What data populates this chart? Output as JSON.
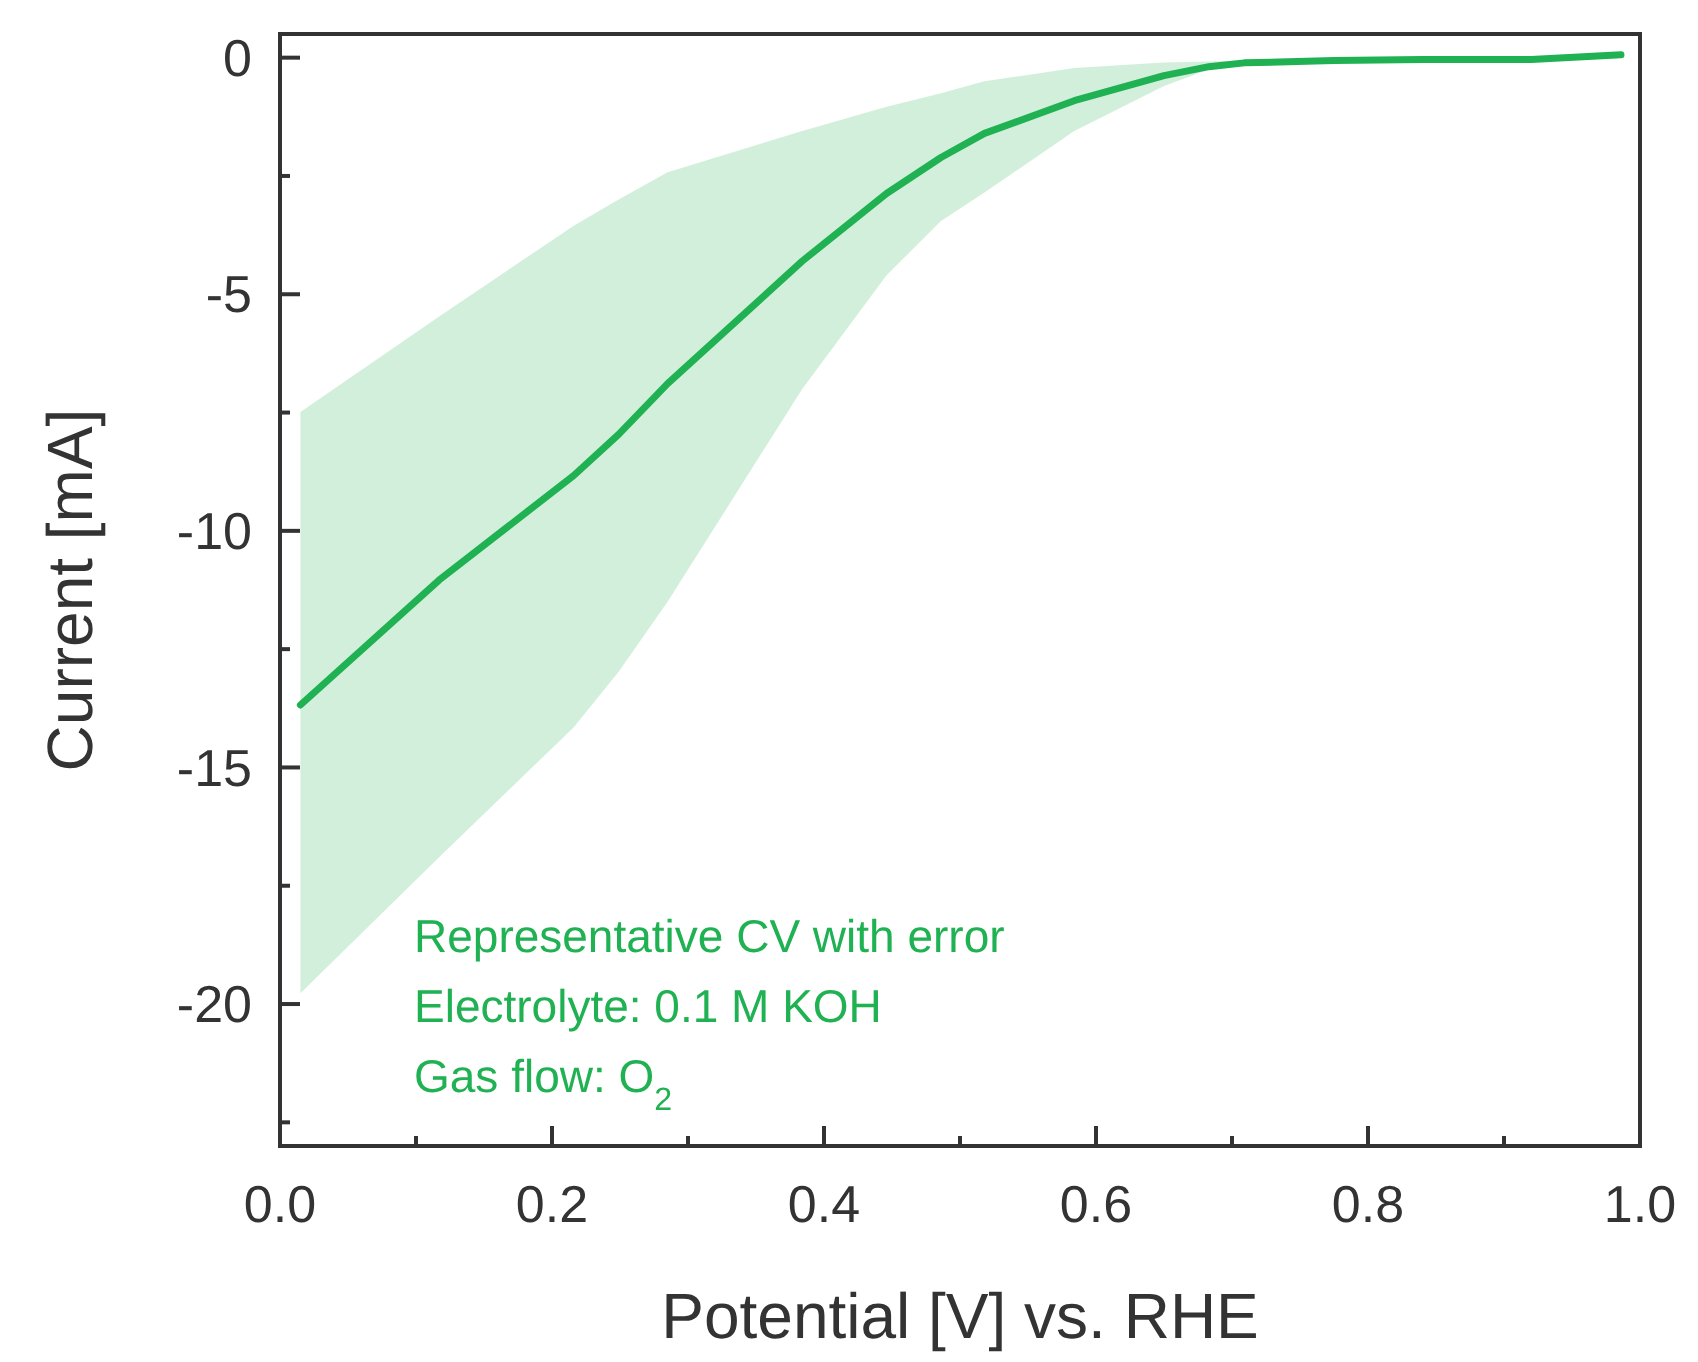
{
  "chart_data": {
    "type": "line",
    "xlabel": "Potential [V] vs. RHE",
    "ylabel": "Current [mA]",
    "x": [
      0.015,
      0.117,
      0.216,
      0.249,
      0.285,
      0.384,
      0.446,
      0.486,
      0.518,
      0.584,
      0.65,
      0.683,
      0.709,
      0.775,
      0.84,
      0.92,
      0.986
    ],
    "series": [
      {
        "color": "#1fb152",
        "values": [
          -13.68,
          -11.04,
          -8.83,
          -7.96,
          -6.89,
          -4.3,
          -2.87,
          -2.11,
          -1.6,
          -0.91,
          -0.38,
          -0.19,
          -0.11,
          -0.06,
          -0.04,
          -0.04,
          0.06
        ],
        "lower": [
          -19.77,
          -16.9,
          -14.15,
          -12.98,
          -11.5,
          -7.0,
          -4.6,
          -3.45,
          -2.85,
          -1.55,
          -0.6,
          -0.25,
          -0.15,
          -0.09,
          -0.06,
          -0.06,
          0.04
        ],
        "upper": [
          -7.49,
          -5.47,
          -3.55,
          -3.0,
          -2.42,
          -1.55,
          -1.04,
          -0.75,
          -0.5,
          -0.22,
          -0.1,
          -0.08,
          -0.06,
          -0.03,
          -0.02,
          -0.02,
          0.08
        ]
      }
    ],
    "xlim": [
      0,
      1
    ],
    "ylim": [
      -23,
      0.5
    ],
    "xticks": [
      {
        "value": 0,
        "label": "0.0"
      },
      {
        "value": 0.1,
        "label": null
      },
      {
        "value": 0.2,
        "label": "0.2"
      },
      {
        "value": 0.3,
        "label": null
      },
      {
        "value": 0.4,
        "label": "0.4"
      },
      {
        "value": 0.5,
        "label": null
      },
      {
        "value": 0.6,
        "label": "0.6"
      },
      {
        "value": 0.7,
        "label": null
      },
      {
        "value": 0.8,
        "label": "0.8"
      },
      {
        "value": 0.9,
        "label": null
      },
      {
        "value": 1,
        "label": "1.0"
      }
    ],
    "yticks": [
      0,
      {
        "value": -2.5,
        "label": null
      },
      -5,
      {
        "value": -7.5,
        "label": null
      },
      -10,
      {
        "value": -12.5,
        "label": null
      },
      -15,
      {
        "value": -17.5,
        "label": null
      },
      -20,
      {
        "value": -22.5,
        "label": null
      }
    ],
    "annotations": [
      "Representative CV with error",
      "Electrolyte: 0.1 M KOH",
      "Gas flow: O$_{2}$"
    ],
    "grid": false,
    "marker": "none",
    "line_style": "solid"
  }
}
